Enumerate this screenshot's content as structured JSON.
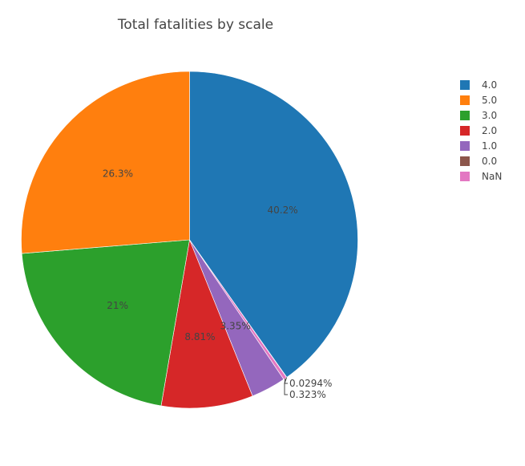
{
  "chart_data": {
    "type": "pie",
    "title": "Total fatalities by scale",
    "slices": [
      {
        "label": "4.0",
        "percent": 40.2,
        "text": "40.2%",
        "color": "#1f77b4"
      },
      {
        "label": "0.0",
        "percent": 0.0294,
        "text": "0.0294%",
        "color": "#8c564b"
      },
      {
        "label": "NaN",
        "percent": 0.323,
        "text": "0.323%",
        "color": "#e377c2"
      },
      {
        "label": "1.0",
        "percent": 3.35,
        "text": "3.35%",
        "color": "#9467bd"
      },
      {
        "label": "2.0",
        "percent": 8.81,
        "text": "8.81%",
        "color": "#d62728"
      },
      {
        "label": "3.0",
        "percent": 21,
        "text": "21%",
        "color": "#2ca02c"
      },
      {
        "label": "5.0",
        "percent": 26.3,
        "text": "26.3%",
        "color": "#ff7f0e"
      }
    ],
    "legend": {
      "placement": "top-right",
      "entries": [
        {
          "label": "4.0",
          "color": "#1f77b4"
        },
        {
          "label": "5.0",
          "color": "#ff7f0e"
        },
        {
          "label": "3.0",
          "color": "#2ca02c"
        },
        {
          "label": "2.0",
          "color": "#d62728"
        },
        {
          "label": "1.0",
          "color": "#9467bd"
        },
        {
          "label": "0.0",
          "color": "#8c564b"
        },
        {
          "label": "NaN",
          "color": "#e377c2"
        }
      ]
    }
  }
}
